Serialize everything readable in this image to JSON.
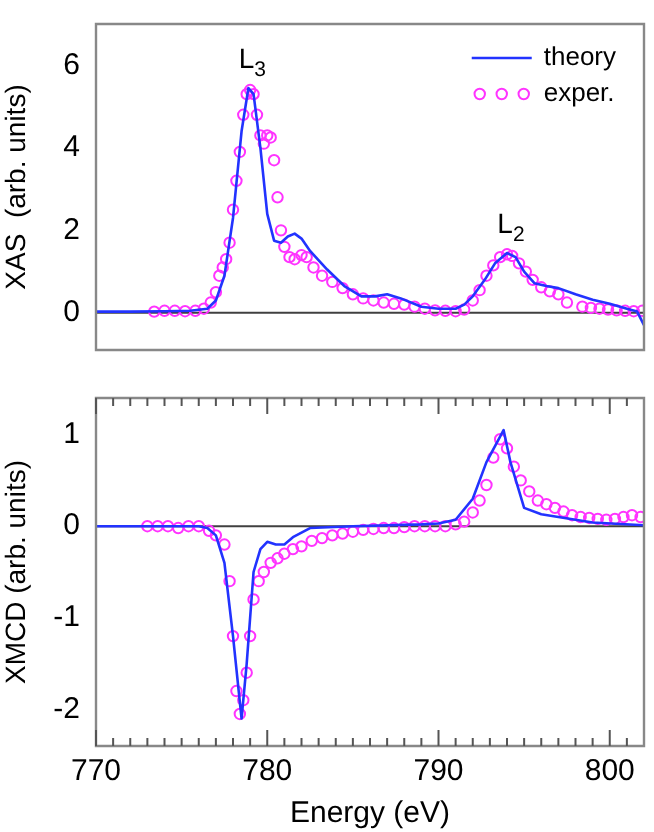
{
  "chart_data": [
    {
      "type": "line",
      "ylabel": "XAS  (arb. units)",
      "xlim": [
        770,
        802
      ],
      "ylim": [
        -0.9,
        7
      ],
      "yticks": [
        0,
        2,
        4,
        6
      ],
      "tick_labels": "y",
      "legend": "top right",
      "grid": false,
      "ref_lines": [
        {
          "axis": "y",
          "value": 0,
          "color": "#404040"
        }
      ],
      "annotations": [
        {
          "text": "L$_{3}$",
          "x": 778.9,
          "y": 5.45
        },
        {
          "text": "L$_{2}$",
          "x": 794,
          "y": 1.45
        }
      ],
      "series": [
        {
          "name": "theory",
          "marker": "none",
          "color": "#2233ff",
          "x": [
            770,
            772,
            774,
            775.5,
            776.5,
            777,
            777.5,
            778,
            778.5,
            778.9,
            779.2,
            779.6,
            780,
            780.4,
            780.8,
            781.2,
            781.6,
            782,
            782.5,
            783.5,
            784.5,
            785.5,
            786.3,
            787,
            787.8,
            789,
            790,
            791,
            791.5,
            792,
            792.7,
            793.3,
            794,
            794.5,
            795,
            795.6,
            796.3,
            797,
            798,
            799,
            800,
            801,
            801.6,
            802
          ],
          "values": [
            0.03,
            0.03,
            0.04,
            0.05,
            0.1,
            0.3,
            0.9,
            2.3,
            4.4,
            5.45,
            5.3,
            4.0,
            2.4,
            1.75,
            1.7,
            1.85,
            1.92,
            1.8,
            1.5,
            1.05,
            0.65,
            0.4,
            0.4,
            0.45,
            0.35,
            0.15,
            0.1,
            0.1,
            0.2,
            0.4,
            0.8,
            1.2,
            1.45,
            1.35,
            1.0,
            0.72,
            0.65,
            0.6,
            0.45,
            0.32,
            0.22,
            0.1,
            0.03,
            -0.3
          ]
        },
        {
          "name": "exper.",
          "type": "scatter",
          "marker": "circle",
          "color": "#ff33ff",
          "x": [
            773.4,
            774,
            774.6,
            775.2,
            775.8,
            776.3,
            776.7,
            777,
            777.2,
            777.4,
            777.6,
            777.8,
            778,
            778.2,
            778.4,
            778.6,
            778.8,
            779,
            779.2,
            779.4,
            779.6,
            779.8,
            780,
            780.2,
            780.4,
            780.6,
            780.8,
            781,
            781.3,
            781.6,
            782,
            782.3,
            782.7,
            783.2,
            783.8,
            784.4,
            785,
            785.6,
            786.2,
            786.8,
            787.4,
            788,
            788.6,
            789.2,
            789.8,
            790.4,
            791,
            791.5,
            792,
            792.4,
            792.8,
            793.2,
            793.6,
            794,
            794.3,
            794.7,
            795.1,
            795.5,
            796,
            796.5,
            797,
            797.5,
            798.4,
            798.9,
            799.4,
            799.9,
            800.4,
            800.9,
            801.4,
            801.9
          ],
          "values": [
            0.03,
            0.05,
            0.05,
            0.04,
            0.05,
            0.1,
            0.25,
            0.5,
            0.9,
            1.1,
            1.3,
            1.7,
            2.5,
            3.2,
            3.9,
            4.8,
            5.3,
            5.4,
            5.3,
            4.8,
            4.3,
            4.1,
            4.3,
            4.25,
            3.7,
            2.8,
            2.0,
            1.6,
            1.35,
            1.3,
            1.4,
            1.35,
            1.1,
            0.9,
            0.75,
            0.6,
            0.45,
            0.35,
            0.3,
            0.25,
            0.22,
            0.2,
            0.15,
            0.1,
            0.06,
            0.05,
            0.04,
            0.08,
            0.3,
            0.55,
            0.9,
            1.15,
            1.35,
            1.42,
            1.38,
            1.2,
            1.0,
            0.8,
            0.62,
            0.52,
            0.45,
            0.25,
            0.15,
            0.12,
            0.1,
            0.08,
            0.06,
            0.05,
            0.04,
            0.05
          ]
        }
      ]
    },
    {
      "type": "line",
      "ylabel": "XMCD (arb. units)",
      "xlabel": "Energy (eV)",
      "xlim": [
        770,
        802
      ],
      "ylim": [
        -2.4,
        1.4
      ],
      "yticks": [
        -2,
        -1,
        0,
        1
      ],
      "grid": false,
      "xticks": [
        770,
        {
          "value": 771,
          "label": null
        },
        {
          "value": 772,
          "label": null
        },
        {
          "value": 773,
          "label": null
        },
        {
          "value": 774,
          "label": null
        },
        {
          "value": 775,
          "label": null
        },
        {
          "value": 776,
          "label": null
        },
        {
          "value": 777,
          "label": null
        },
        {
          "value": 778,
          "label": null
        },
        {
          "value": 779,
          "label": null
        },
        780,
        {
          "value": 781,
          "label": null
        },
        {
          "value": 782,
          "label": null
        },
        {
          "value": 783,
          "label": null
        },
        {
          "value": 784,
          "label": null
        },
        {
          "value": 785,
          "label": null
        },
        {
          "value": 786,
          "label": null
        },
        {
          "value": 787,
          "label": null
        },
        {
          "value": 788,
          "label": null
        },
        {
          "value": 789,
          "label": null
        },
        790,
        {
          "value": 791,
          "label": null
        },
        {
          "value": 792,
          "label": null
        },
        {
          "value": 793,
          "label": null
        },
        {
          "value": 794,
          "label": null
        },
        {
          "value": 795,
          "label": null
        },
        {
          "value": 796,
          "label": null
        },
        {
          "value": 797,
          "label": null
        },
        {
          "value": 798,
          "label": null
        },
        {
          "value": 799,
          "label": null
        },
        800,
        {
          "value": 801,
          "label": null
        }
      ],
      "ref_lines": [
        {
          "axis": "y",
          "value": 0,
          "color": "#404040"
        }
      ],
      "series": [
        {
          "marker": "none",
          "color": "#2233ff",
          "x": [
            770,
            773,
            776,
            776.5,
            777,
            777.5,
            778,
            778.5,
            778.8,
            779.2,
            779.6,
            780,
            780.5,
            781,
            781.5,
            782.5,
            785,
            789,
            790,
            791,
            792,
            792.8,
            793.8,
            794.2,
            795,
            796,
            797,
            799,
            802
          ],
          "values": [
            0,
            0,
            0,
            -0.02,
            -0.1,
            -0.4,
            -1.2,
            -2.1,
            -1.5,
            -0.5,
            -0.25,
            -0.17,
            -0.2,
            -0.2,
            -0.12,
            -0.02,
            0,
            0.02,
            0.03,
            0.07,
            0.3,
            0.7,
            1.05,
            0.7,
            0.2,
            0.13,
            0.1,
            0.04,
            0.01
          ]
        },
        {
          "type": "scatter",
          "marker": "circle",
          "color": "#ff33ff",
          "x": [
            773,
            773.6,
            774.2,
            774.8,
            775.4,
            776,
            776.6,
            777,
            777.5,
            777.8,
            778,
            778.2,
            778.4,
            778.6,
            778.8,
            779,
            779.2,
            779.5,
            779.8,
            780.2,
            780.6,
            781,
            781.5,
            782,
            782.6,
            783.2,
            783.8,
            784.4,
            785,
            785.6,
            786.2,
            786.8,
            787.4,
            788,
            788.6,
            789.2,
            789.8,
            790.4,
            791,
            791.5,
            792,
            792.4,
            792.8,
            793.2,
            793.6,
            794,
            794.4,
            794.8,
            795.3,
            795.8,
            796.3,
            796.8,
            797.3,
            797.8,
            798.3,
            798.8,
            799.3,
            799.8,
            800.3,
            800.8,
            801.3,
            801.8
          ],
          "values": [
            0,
            0,
            0,
            -0.02,
            0,
            0,
            -0.05,
            -0.1,
            -0.2,
            -0.6,
            -1.2,
            -1.8,
            -2.05,
            -1.9,
            -1.6,
            -1.2,
            -0.8,
            -0.6,
            -0.5,
            -0.4,
            -0.35,
            -0.3,
            -0.25,
            -0.22,
            -0.16,
            -0.13,
            -0.1,
            -0.08,
            -0.06,
            -0.04,
            -0.03,
            -0.02,
            -0.02,
            -0.01,
            0,
            0,
            0,
            0,
            0.02,
            0.05,
            0.15,
            0.28,
            0.45,
            0.75,
            0.95,
            0.85,
            0.65,
            0.5,
            0.38,
            0.28,
            0.24,
            0.2,
            0.16,
            0.12,
            0.1,
            0.09,
            0.08,
            0.07,
            0.08,
            0.1,
            0.12,
            0.1
          ]
        }
      ]
    }
  ]
}
